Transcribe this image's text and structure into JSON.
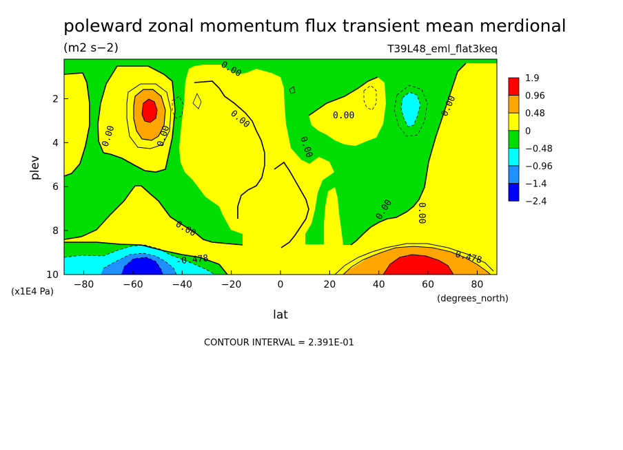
{
  "chart_data": {
    "type": "heatmap",
    "title": "poleward zonal momentum flux transient mean merdional",
    "units": "(m2 s−2)",
    "run_label": "T39L48_eml_flat3keq",
    "xlabel": "lat",
    "xunits": "(degrees_north)",
    "ylabel": "plev",
    "yunits": "(x1E4 Pa)",
    "xlim": [
      -88,
      88
    ],
    "ylim": [
      10,
      0.2
    ],
    "x_ticks": [
      -80,
      -60,
      -40,
      -20,
      0,
      20,
      40,
      60,
      80
    ],
    "y_ticks": [
      2,
      4,
      6,
      8,
      10
    ],
    "contour_interval_text": "CONTOUR INTERVAL = 2.391E-01",
    "contour_labels": [
      "0.00",
      "0.00",
      "0.00",
      "0.00",
      "0.00",
      "0.00",
      "0.00",
      "0.00",
      "0.00",
      "0.00",
      "-0.478",
      "0.478"
    ],
    "levels": [
      {
        "label": "1.9",
        "color": "#ff0000"
      },
      {
        "label": "0.96",
        "color": "#ffa500"
      },
      {
        "label": "0.48",
        "color": "#ffff00"
      },
      {
        "label": "0",
        "color": "#00dd00"
      },
      {
        "label": "-0.48",
        "color": "#00ffff"
      },
      {
        "label": "-0.96",
        "color": "#1e90ff"
      },
      {
        "label": "-1.4",
        "color": "#0000ff"
      },
      {
        "label": "-2.4",
        "color": null
      }
    ],
    "field_features": [
      {
        "lat": -54,
        "plev": 2.4,
        "value": 1.2
      },
      {
        "lat": 56,
        "plev": 9.6,
        "value": 1.1
      },
      {
        "lat": 35,
        "plev": 9.6,
        "value": 0.55
      },
      {
        "lat": -58,
        "plev": 9.4,
        "value": -0.9
      },
      {
        "lat": -80,
        "plev": 9.6,
        "value": -0.55
      },
      {
        "lat": 53,
        "plev": 2.4,
        "value": -0.55
      }
    ]
  }
}
